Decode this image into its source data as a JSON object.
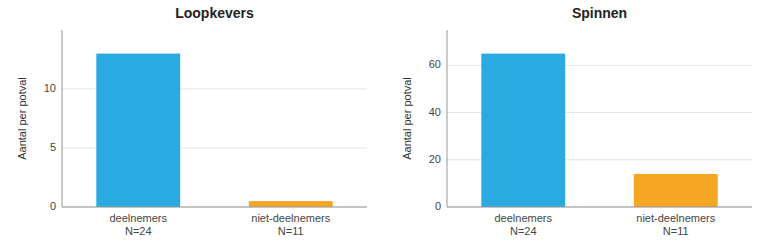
{
  "chart_data": [
    {
      "type": "bar",
      "title": "Loopkevers",
      "categories": [
        "deelnemers\nN=24",
        "niet-deelnemers\nN=11"
      ],
      "values": [
        13.0,
        0.5
      ],
      "colors": [
        "#29ABE2",
        "#F5A623"
      ],
      "ylabel": "Aantal per potval",
      "ylim": [
        0,
        15
      ],
      "yticks": [
        0,
        5,
        10
      ],
      "grid": true
    },
    {
      "type": "bar",
      "title": "Spinnen",
      "categories": [
        "deelnemers\nN=24",
        "niet-deelnemers\nN=11"
      ],
      "values": [
        65.0,
        14.0
      ],
      "colors": [
        "#29ABE2",
        "#F5A623"
      ],
      "ylabel": "Aantal per potval",
      "ylim": [
        0,
        75
      ],
      "yticks": [
        0,
        20,
        40,
        60
      ],
      "grid": true
    }
  ]
}
